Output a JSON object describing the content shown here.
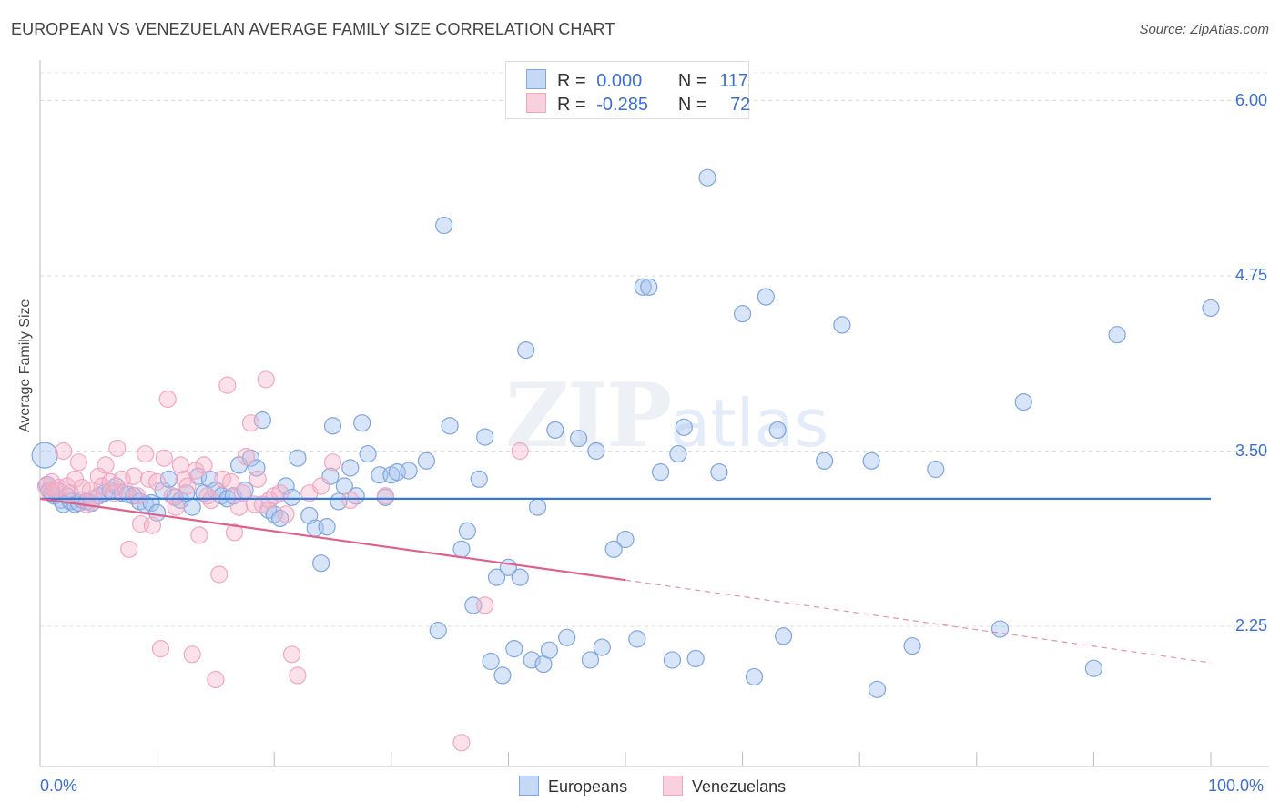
{
  "chart_data": {
    "type": "scatter",
    "title": "EUROPEAN VS VENEZUELAN AVERAGE FAMILY SIZE CORRELATION CHART",
    "source": "Source: ZipAtlas.com",
    "xlabel": "",
    "ylabel": "Average Family Size",
    "xlim": [
      0,
      100
    ],
    "ylim": [
      1.25,
      6.25
    ],
    "x_tick_labels": [
      "0.0%",
      "100.0%"
    ],
    "y_ticks": [
      2.25,
      3.5,
      4.75,
      6.0
    ],
    "y_tick_labels": [
      "2.25",
      "3.50",
      "4.75",
      "6.00"
    ],
    "grid": true,
    "watermark": {
      "zip": "ZIP",
      "atlas": "atlas"
    },
    "legend_stats": [
      {
        "r_label": "R =",
        "r_value": "0.000",
        "n_label": "N =",
        "n_value": "117"
      },
      {
        "r_label": "R =",
        "r_value": "-0.285",
        "n_label": "N =",
        "n_value": "72"
      }
    ],
    "series": [
      {
        "name": "Europeans",
        "color": "#7ea6e0",
        "line_color": "#3a78d6",
        "trend": {
          "x": [
            0,
            100
          ],
          "y": [
            3.16,
            3.16
          ],
          "dashed_x": null
        },
        "points": [
          [
            0.4,
            3.47
          ],
          [
            0.6,
            3.26
          ],
          [
            0.8,
            3.22
          ],
          [
            1.0,
            3.2
          ],
          [
            1.2,
            3.18
          ],
          [
            1.5,
            3.22
          ],
          [
            1.8,
            3.15
          ],
          [
            2.0,
            3.12
          ],
          [
            2.3,
            3.18
          ],
          [
            2.6,
            3.14
          ],
          [
            3.0,
            3.12
          ],
          [
            3.3,
            3.13
          ],
          [
            3.6,
            3.15
          ],
          [
            4.0,
            3.14
          ],
          [
            4.4,
            3.13
          ],
          [
            5.0,
            3.18
          ],
          [
            5.5,
            3.2
          ],
          [
            6.0,
            3.22
          ],
          [
            6.5,
            3.25
          ],
          [
            7.0,
            3.2
          ],
          [
            7.5,
            3.19
          ],
          [
            8.0,
            3.18
          ],
          [
            8.5,
            3.14
          ],
          [
            9.0,
            3.12
          ],
          [
            9.5,
            3.13
          ],
          [
            10.0,
            3.06
          ],
          [
            10.5,
            3.22
          ],
          [
            11.0,
            3.3
          ],
          [
            11.5,
            3.17
          ],
          [
            12.0,
            3.15
          ],
          [
            12.5,
            3.2
          ],
          [
            13.0,
            3.1
          ],
          [
            13.5,
            3.32
          ],
          [
            14.0,
            3.2
          ],
          [
            14.5,
            3.3
          ],
          [
            15.0,
            3.22
          ],
          [
            15.5,
            3.18
          ],
          [
            16.0,
            3.16
          ],
          [
            16.5,
            3.18
          ],
          [
            17.0,
            3.4
          ],
          [
            17.5,
            3.22
          ],
          [
            18.0,
            3.45
          ],
          [
            18.5,
            3.38
          ],
          [
            19.0,
            3.72
          ],
          [
            19.5,
            3.08
          ],
          [
            20.0,
            3.05
          ],
          [
            20.5,
            3.02
          ],
          [
            21.0,
            3.25
          ],
          [
            21.5,
            3.17
          ],
          [
            22.0,
            3.45
          ],
          [
            23.0,
            3.04
          ],
          [
            23.5,
            2.95
          ],
          [
            24.0,
            2.7
          ],
          [
            24.5,
            2.96
          ],
          [
            24.8,
            3.32
          ],
          [
            25.0,
            3.68
          ],
          [
            25.5,
            3.14
          ],
          [
            26.0,
            3.25
          ],
          [
            26.5,
            3.38
          ],
          [
            27.0,
            3.18
          ],
          [
            27.5,
            3.7
          ],
          [
            28.0,
            3.48
          ],
          [
            29.0,
            3.33
          ],
          [
            29.5,
            3.17
          ],
          [
            30.0,
            3.33
          ],
          [
            30.5,
            3.35
          ],
          [
            31.5,
            3.36
          ],
          [
            33.0,
            3.43
          ],
          [
            34.0,
            2.22
          ],
          [
            34.5,
            5.11
          ],
          [
            35.0,
            3.68
          ],
          [
            36.0,
            2.8
          ],
          [
            36.5,
            2.93
          ],
          [
            37.0,
            2.4
          ],
          [
            37.5,
            3.3
          ],
          [
            38.0,
            3.6
          ],
          [
            38.5,
            2.0
          ],
          [
            39.0,
            2.6
          ],
          [
            39.5,
            1.9
          ],
          [
            40.0,
            2.67
          ],
          [
            40.5,
            2.09
          ],
          [
            41.0,
            2.6
          ],
          [
            41.5,
            4.22
          ],
          [
            42.0,
            2.01
          ],
          [
            42.5,
            3.1
          ],
          [
            43.0,
            1.98
          ],
          [
            43.5,
            2.08
          ],
          [
            44.0,
            3.65
          ],
          [
            45.0,
            2.17
          ],
          [
            46.0,
            3.59
          ],
          [
            47.0,
            2.01
          ],
          [
            47.5,
            3.5
          ],
          [
            48.0,
            2.1
          ],
          [
            49.0,
            2.8
          ],
          [
            50.0,
            2.87
          ],
          [
            51.0,
            2.16
          ],
          [
            51.5,
            4.67
          ],
          [
            52.0,
            4.67
          ],
          [
            53.0,
            3.35
          ],
          [
            54.0,
            2.01
          ],
          [
            54.5,
            3.48
          ],
          [
            55.0,
            3.67
          ],
          [
            56.0,
            2.02
          ],
          [
            57.0,
            5.45
          ],
          [
            58.0,
            3.35
          ],
          [
            60.0,
            4.48
          ],
          [
            61.0,
            1.89
          ],
          [
            62.0,
            4.6
          ],
          [
            63.0,
            3.65
          ],
          [
            63.5,
            2.18
          ],
          [
            67.0,
            3.43
          ],
          [
            68.5,
            4.4
          ],
          [
            71.0,
            3.43
          ],
          [
            71.5,
            1.8
          ],
          [
            74.5,
            2.11
          ],
          [
            76.5,
            3.37
          ],
          [
            82.0,
            2.23
          ],
          [
            84.0,
            3.85
          ],
          [
            90.0,
            1.95
          ],
          [
            92.0,
            4.33
          ],
          [
            100.0,
            4.52
          ]
        ]
      },
      {
        "name": "Venezuelans",
        "color": "#f2a7bf",
        "line_color": "#e0608c",
        "trend": {
          "x": [
            0,
            50
          ],
          "y": [
            3.16,
            2.58
          ],
          "dashed_x": [
            50,
            100
          ],
          "dashed_y": [
            2.58,
            1.99
          ]
        },
        "points": [
          [
            0.5,
            3.25
          ],
          [
            0.8,
            3.21
          ],
          [
            1.0,
            3.28
          ],
          [
            1.3,
            3.22
          ],
          [
            1.6,
            3.24
          ],
          [
            2.0,
            3.5
          ],
          [
            2.3,
            3.25
          ],
          [
            2.6,
            3.2
          ],
          [
            3.0,
            3.3
          ],
          [
            3.3,
            3.42
          ],
          [
            3.6,
            3.24
          ],
          [
            4.0,
            3.12
          ],
          [
            4.3,
            3.22
          ],
          [
            4.6,
            3.16
          ],
          [
            5.0,
            3.32
          ],
          [
            5.3,
            3.25
          ],
          [
            5.6,
            3.4
          ],
          [
            6.0,
            3.28
          ],
          [
            6.3,
            3.2
          ],
          [
            6.6,
            3.52
          ],
          [
            7.0,
            3.3
          ],
          [
            7.3,
            3.22
          ],
          [
            7.6,
            2.8
          ],
          [
            8.0,
            3.32
          ],
          [
            8.3,
            3.18
          ],
          [
            8.6,
            2.98
          ],
          [
            9.0,
            3.48
          ],
          [
            9.3,
            3.3
          ],
          [
            9.6,
            2.97
          ],
          [
            10.0,
            3.28
          ],
          [
            10.3,
            2.09
          ],
          [
            10.6,
            3.45
          ],
          [
            10.9,
            3.87
          ],
          [
            11.3,
            3.18
          ],
          [
            11.6,
            3.1
          ],
          [
            12.0,
            3.4
          ],
          [
            12.3,
            3.3
          ],
          [
            12.6,
            3.25
          ],
          [
            13.0,
            2.05
          ],
          [
            13.3,
            3.36
          ],
          [
            13.6,
            2.9
          ],
          [
            14.0,
            3.4
          ],
          [
            14.3,
            3.18
          ],
          [
            14.6,
            3.15
          ],
          [
            15.0,
            1.87
          ],
          [
            15.3,
            2.62
          ],
          [
            15.6,
            3.3
          ],
          [
            16.0,
            3.97
          ],
          [
            16.3,
            3.28
          ],
          [
            16.6,
            2.92
          ],
          [
            17.0,
            3.1
          ],
          [
            17.3,
            3.2
          ],
          [
            17.6,
            3.46
          ],
          [
            18.0,
            3.7
          ],
          [
            18.3,
            3.12
          ],
          [
            18.6,
            3.3
          ],
          [
            19.0,
            3.12
          ],
          [
            19.3,
            4.01
          ],
          [
            19.6,
            3.15
          ],
          [
            20.0,
            3.18
          ],
          [
            20.5,
            3.2
          ],
          [
            21.0,
            3.05
          ],
          [
            21.5,
            2.05
          ],
          [
            22.0,
            1.9
          ],
          [
            23.0,
            3.2
          ],
          [
            24.0,
            3.25
          ],
          [
            25.0,
            3.42
          ],
          [
            26.5,
            3.15
          ],
          [
            29.5,
            3.18
          ],
          [
            36.0,
            1.42
          ],
          [
            38.0,
            2.4
          ],
          [
            41.0,
            3.5
          ]
        ]
      }
    ]
  },
  "legend": {
    "europeans": "Europeans",
    "venezuelans": "Venezuelans"
  }
}
